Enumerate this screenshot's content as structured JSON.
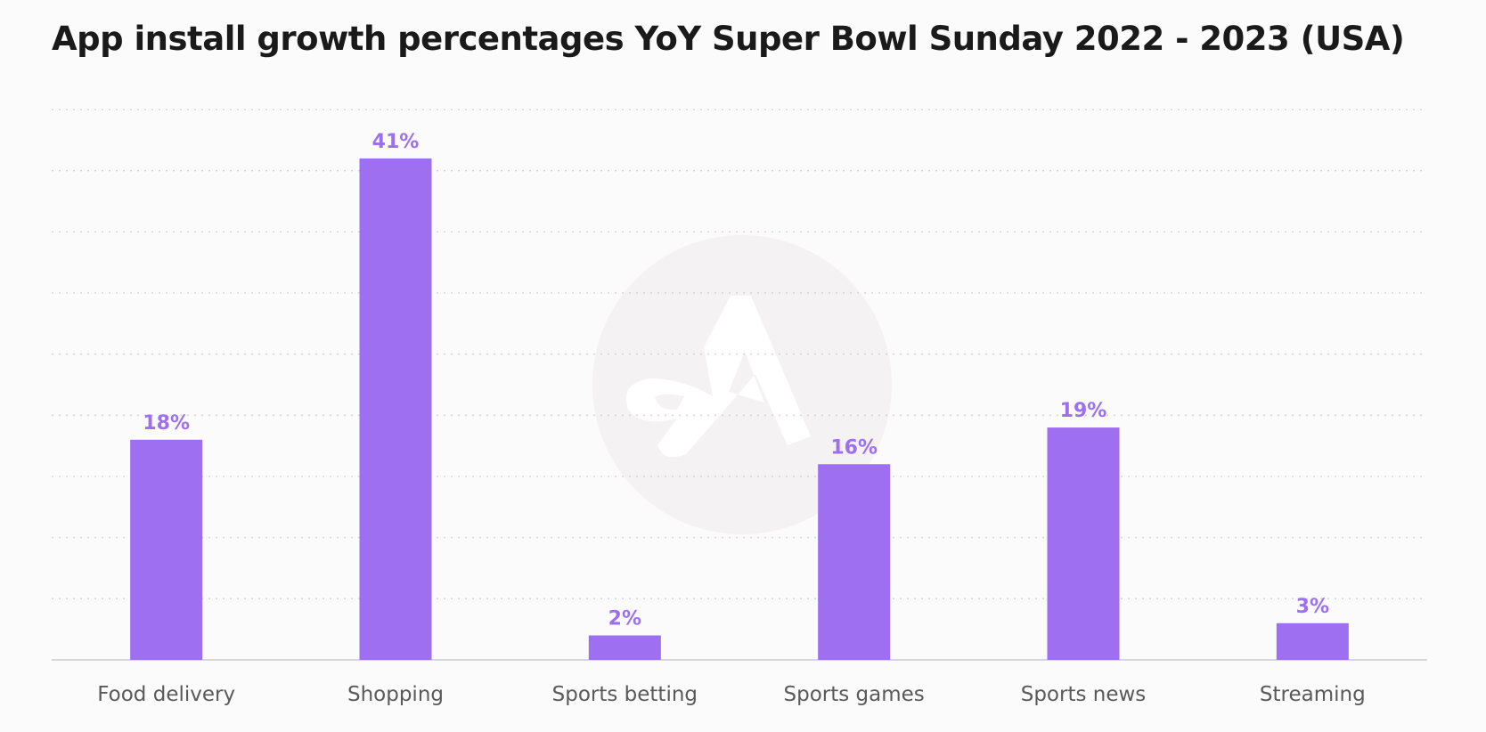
{
  "chart_data": {
    "type": "bar",
    "title": "App install growth percentages YoY Super Bowl Sunday 2022 - 2023 (USA)",
    "xlabel": "",
    "ylabel": "",
    "categories": [
      "Food delivery",
      "Shopping",
      "Sports betting",
      "Sports games",
      "Sports news",
      "Streaming"
    ],
    "values": [
      18,
      41,
      2,
      16,
      19,
      3
    ],
    "data_labels": [
      "18%",
      "41%",
      "2%",
      "16%",
      "19%",
      "3%"
    ],
    "ylim": [
      0,
      45
    ],
    "grid": true,
    "legend": "none",
    "colors": {
      "bar": "#9e6ff0",
      "label": "#9e6ff0",
      "title": "#1a1a1a",
      "grid": "#d6d3d8"
    }
  }
}
